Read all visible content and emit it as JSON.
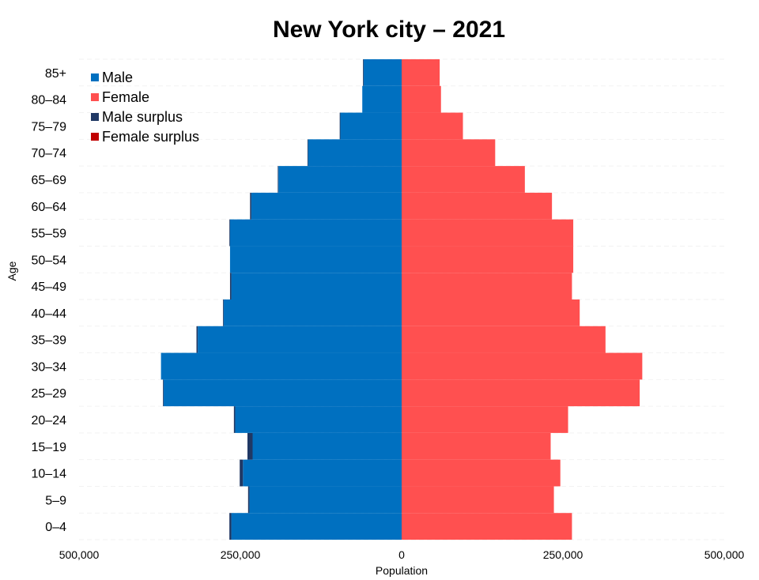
{
  "chart_data": {
    "type": "bar",
    "orientation": "horizontal-pyramid",
    "title": "New York city – 2021",
    "xlabel": "Population",
    "ylabel": "Age",
    "xlim": [
      -500000,
      500000
    ],
    "x_ticks": [
      {
        "value": -500000,
        "label": "500,000"
      },
      {
        "value": -250000,
        "label": "250,000"
      },
      {
        "value": 0,
        "label": "0"
      },
      {
        "value": 250000,
        "label": "250,000"
      },
      {
        "value": 500000,
        "label": "500,000"
      }
    ],
    "legend_position": "top-left",
    "grid": true,
    "categories": [
      "0–4",
      "5–9",
      "10–14",
      "15–19",
      "20–24",
      "25–29",
      "30–34",
      "35–39",
      "40–44",
      "45–49",
      "50–54",
      "55–59",
      "60–64",
      "65–69",
      "70–74",
      "75–79",
      "80–84",
      "85+"
    ],
    "series": [
      {
        "name": "Male",
        "color": "#0070c0",
        "values": [
          267000,
          238000,
          251000,
          239000,
          260000,
          370000,
          373000,
          318000,
          277000,
          266000,
          266000,
          267000,
          235000,
          192000,
          146000,
          96000,
          61000,
          60000
        ]
      },
      {
        "name": "Female",
        "color": "#ff5050",
        "values": [
          264000,
          236000,
          246000,
          231000,
          258000,
          369000,
          373000,
          316000,
          276000,
          264000,
          266000,
          266000,
          233000,
          191000,
          145000,
          95000,
          61000,
          59000
        ]
      }
    ],
    "legend": [
      {
        "label": "Male",
        "color": "#0070c0"
      },
      {
        "label": "Female",
        "color": "#ff5050"
      },
      {
        "label": "Male surplus",
        "color": "#203864"
      },
      {
        "label": "Female surplus",
        "color": "#c00000"
      }
    ],
    "surplus_colors": {
      "male": "#203864",
      "female": "#c00000"
    }
  }
}
